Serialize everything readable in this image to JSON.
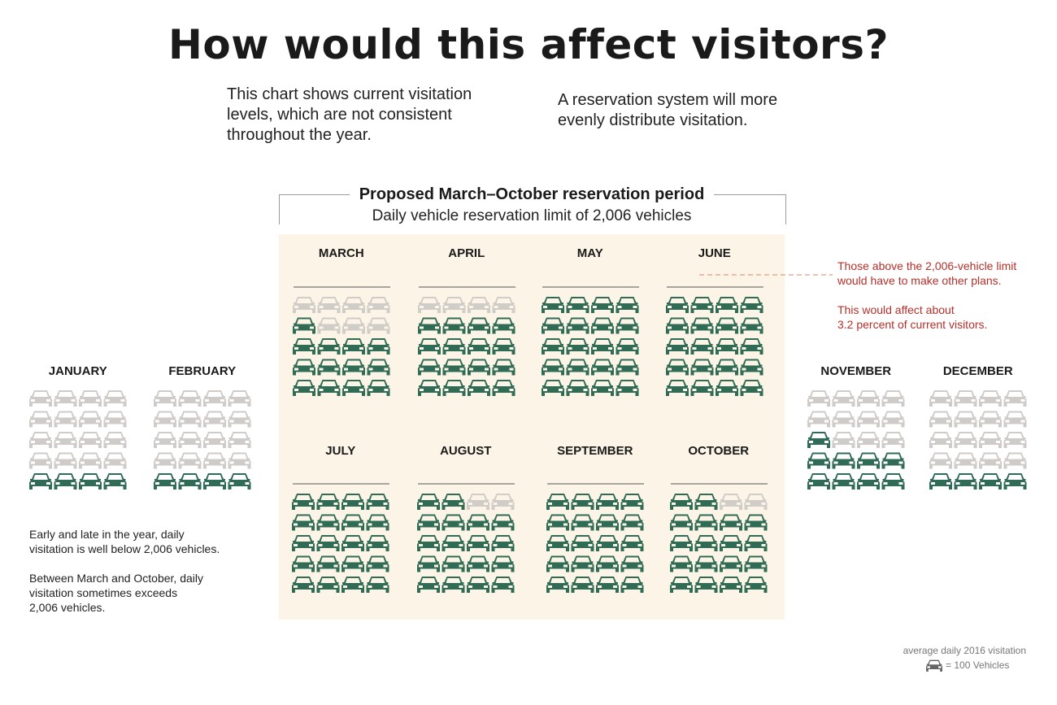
{
  "title": "How would this affect visitors?",
  "intro": {
    "left_line1": "This chart shows current visitation",
    "left_line2": "levels, which are not consistent",
    "left_line3": "throughout the year.",
    "right_line1": "A reservation system will more",
    "right_line2": "evenly distribute visitation."
  },
  "period": {
    "title": "Proposed March–October reservation period",
    "subtitle": "Daily vehicle reservation limit of 2,006 vehicles"
  },
  "notes": {
    "limit_line1": "Those above the 2,006-vehicle limit",
    "limit_line2": "would have to make other plans.",
    "affect_line1": "This would affect about",
    "affect_line2": "3.2 percent of current visitors.",
    "early_line1": "Early and late in the year, daily",
    "early_line2": "visitation is well below 2,006 vehicles.",
    "between_line1": "Between March and October, daily",
    "between_line2": "visitation sometimes exceeds",
    "between_line3": "2,006 vehicles."
  },
  "legend": {
    "title": "average daily 2016 visitation",
    "unit_text": "= 100 Vehicles",
    "icon": "car-icon"
  },
  "colors": {
    "within_limit": "#2f6b55",
    "over_limit": "#b5302a",
    "unused_in_season": "#d0cdc9",
    "unused_off_season": "#cfcbc8",
    "off_season_fill": "#c8bfb6",
    "reservation_bg": "#fcf4e6"
  },
  "chart_data": {
    "type": "pictogram",
    "unit": "1 car icon = 100 vehicles",
    "limit": 2006,
    "months": [
      {
        "name": "JANUARY",
        "cars": 4.5,
        "in_reservation_period": false
      },
      {
        "name": "FEBRUARY",
        "cars": 4.25,
        "in_reservation_period": false
      },
      {
        "name": "MARCH",
        "cars": 13,
        "in_reservation_period": true
      },
      {
        "name": "APRIL",
        "cars": 16.5,
        "in_reservation_period": true
      },
      {
        "name": "MAY",
        "cars": 21,
        "in_reservation_period": true
      },
      {
        "name": "JUNE",
        "cars": 20.75,
        "in_reservation_period": true
      },
      {
        "name": "JULY",
        "cars": 20,
        "in_reservation_period": true
      },
      {
        "name": "AUGUST",
        "cars": 18.5,
        "in_reservation_period": true
      },
      {
        "name": "SEPTEMBER",
        "cars": 21.75,
        "in_reservation_period": true
      },
      {
        "name": "OCTOBER",
        "cars": 18,
        "in_reservation_period": true
      },
      {
        "name": "NOVEMBER",
        "cars": 9,
        "in_reservation_period": false
      },
      {
        "name": "DECEMBER",
        "cars": 4.25,
        "in_reservation_period": false
      }
    ]
  }
}
